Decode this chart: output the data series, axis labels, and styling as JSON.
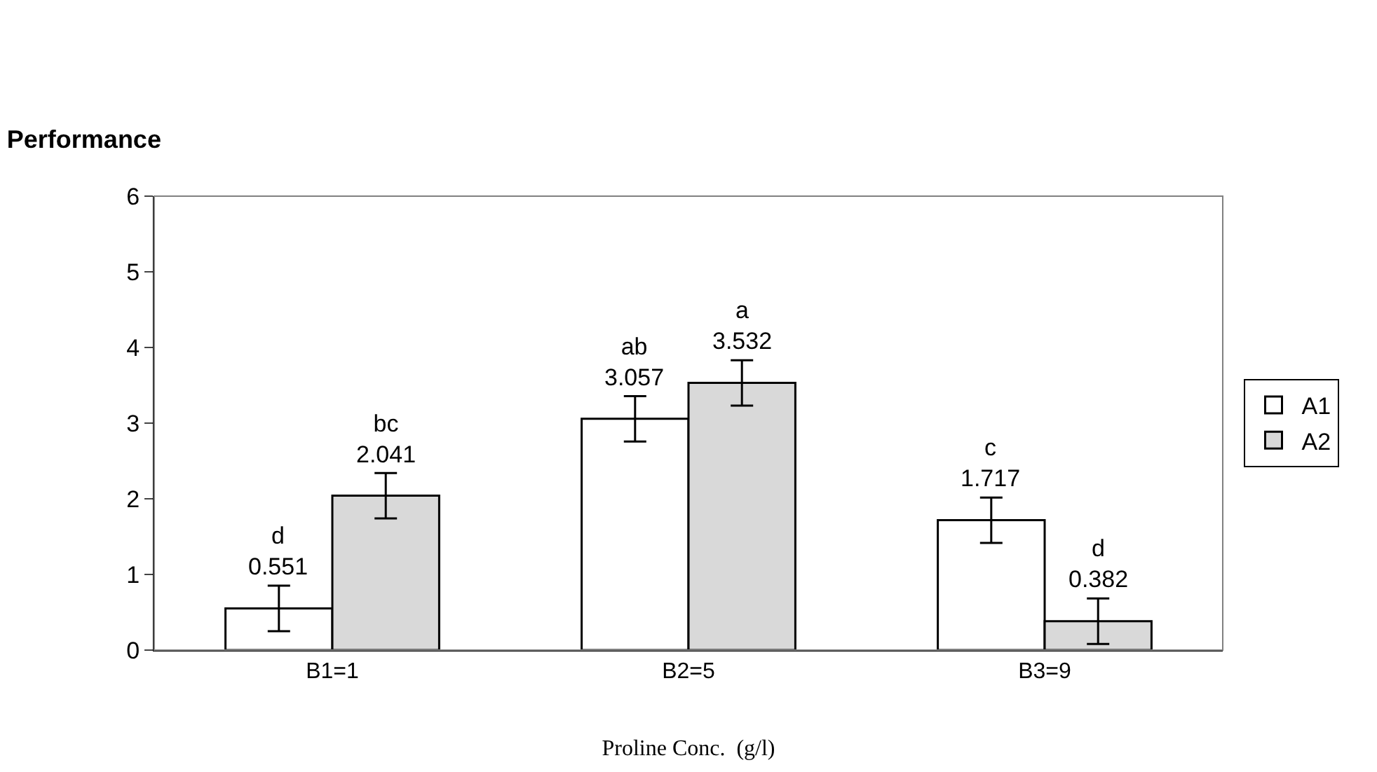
{
  "chart_data": {
    "type": "bar",
    "title": "Performance",
    "xlabel": "Proline Conc.  (g/l)",
    "categories": [
      "B1=1",
      "B2=5",
      "B3=9"
    ],
    "series": [
      {
        "name": "A1",
        "color": "#ffffff",
        "values": [
          0.551,
          3.057,
          1.717
        ],
        "errors": [
          0.3,
          0.3,
          0.3
        ],
        "value_labels": [
          "d\n0.551",
          "ab\n3.057",
          "c\n1.717"
        ]
      },
      {
        "name": "A2",
        "color": "#d9d9d9",
        "values": [
          2.041,
          3.532,
          0.382
        ],
        "errors": [
          0.3,
          0.3,
          0.3
        ],
        "value_labels": [
          "bc\n2.041",
          "a\n3.532",
          "d\n0.382"
        ]
      }
    ],
    "ylim": [
      0,
      6
    ],
    "yticks": [
      0,
      1,
      2,
      3,
      4,
      5,
      6
    ],
    "legend": "right"
  }
}
